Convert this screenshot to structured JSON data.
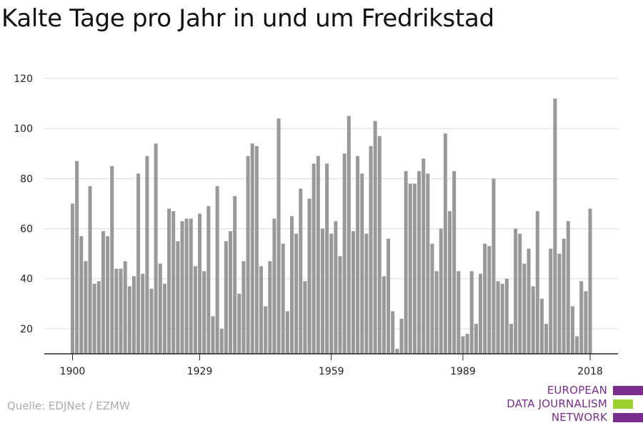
{
  "title": "Kalte Tage pro Jahr in und um Fredrikstad",
  "source": "Quelle: EDJNet / EZMW",
  "logo": {
    "lines": [
      "EUROPEAN",
      "DATA JOURNALISM",
      "NETWORK"
    ],
    "colors": {
      "purple": "#7b2d8e",
      "green": "#9bd12f"
    }
  },
  "chart_data": {
    "type": "bar",
    "title": "Kalte Tage pro Jahr in und um Fredrikstad",
    "xlabel": "",
    "ylabel": "",
    "ylim": [
      10,
      120
    ],
    "yticks": [
      20,
      40,
      60,
      80,
      100,
      120
    ],
    "xticks": [
      1900,
      1929,
      1959,
      1989,
      2018
    ],
    "grid": true,
    "bar_color": "#999999",
    "x": [
      1900,
      1901,
      1902,
      1903,
      1904,
      1905,
      1906,
      1907,
      1908,
      1909,
      1910,
      1911,
      1912,
      1913,
      1914,
      1915,
      1916,
      1917,
      1918,
      1919,
      1920,
      1921,
      1922,
      1923,
      1924,
      1925,
      1926,
      1927,
      1928,
      1929,
      1930,
      1931,
      1932,
      1933,
      1934,
      1935,
      1936,
      1937,
      1938,
      1939,
      1940,
      1941,
      1942,
      1943,
      1944,
      1945,
      1946,
      1947,
      1948,
      1949,
      1950,
      1951,
      1952,
      1953,
      1954,
      1955,
      1956,
      1957,
      1958,
      1959,
      1960,
      1961,
      1962,
      1963,
      1964,
      1965,
      1966,
      1967,
      1968,
      1969,
      1970,
      1971,
      1972,
      1973,
      1974,
      1975,
      1976,
      1977,
      1978,
      1979,
      1980,
      1981,
      1982,
      1983,
      1984,
      1985,
      1986,
      1987,
      1988,
      1989,
      1990,
      1991,
      1992,
      1993,
      1994,
      1995,
      1996,
      1997,
      1998,
      1999,
      2000,
      2001,
      2002,
      2003,
      2004,
      2005,
      2006,
      2007,
      2008,
      2009,
      2010,
      2011,
      2012,
      2013,
      2014,
      2015,
      2016,
      2017,
      2018
    ],
    "values": [
      70,
      87,
      57,
      47,
      77,
      38,
      39,
      59,
      57,
      85,
      44,
      44,
      47,
      37,
      41,
      82,
      42,
      89,
      36,
      94,
      46,
      38,
      68,
      67,
      55,
      63,
      64,
      64,
      45,
      66,
      43,
      69,
      25,
      77,
      20,
      55,
      59,
      73,
      34,
      47,
      89,
      94,
      93,
      45,
      29,
      47,
      64,
      104,
      54,
      27,
      65,
      58,
      76,
      39,
      72,
      86,
      89,
      60,
      86,
      58,
      63,
      49,
      90,
      105,
      59,
      89,
      82,
      58,
      93,
      103,
      97,
      41,
      56,
      27,
      12,
      24,
      83,
      78,
      78,
      83,
      88,
      82,
      54,
      43,
      60,
      98,
      67,
      83,
      43,
      17,
      18,
      43,
      22,
      42,
      54,
      53,
      80,
      39,
      38,
      40,
      22,
      60,
      58,
      46,
      52,
      37,
      67,
      32,
      22,
      52,
      112,
      50,
      56,
      63,
      29,
      17,
      39,
      35,
      68
    ]
  }
}
